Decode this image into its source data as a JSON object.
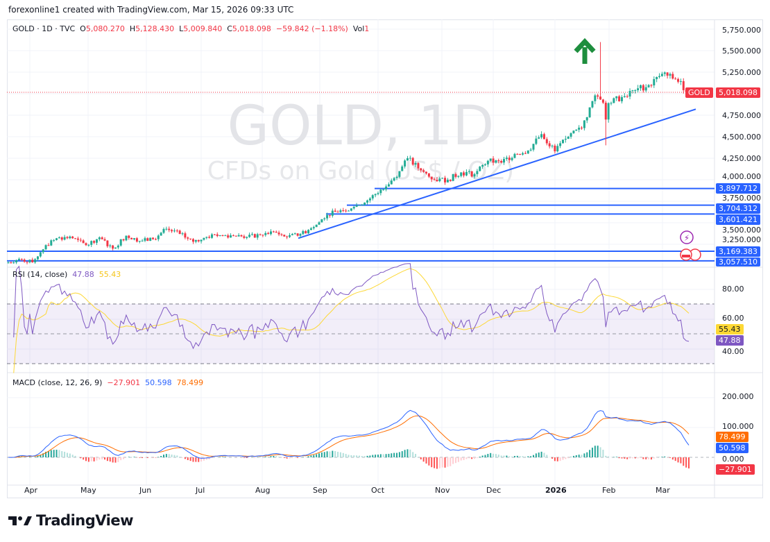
{
  "credit": "forexonline1 created with TradingView.com, Mar 15, 2026 09:33 UTC",
  "legend": {
    "symbol": "GOLD · 1D · TVC",
    "o_label": "O",
    "o": "5,080.270",
    "h_label": "H",
    "h": "5,128.430",
    "l_label": "L",
    "l": "5,009.840",
    "c_label": "C",
    "c": "5,018.098",
    "change": "−59.842 (−1.18%)",
    "vol_label": "Vol",
    "vol": "1"
  },
  "watermark": {
    "title": "GOLD, 1D",
    "subtitle": "CFDs on Gold (US$ / OZ)"
  },
  "price_axis": [
    "5,750.000",
    "5,500.000",
    "5,250.000",
    "4,750.000",
    "4,500.000",
    "4,250.000",
    "4,000.000",
    "3,750.000",
    "3,500.000",
    "3,250.000"
  ],
  "last_price": {
    "symbol": "GOLD",
    "value": "5,018.098"
  },
  "levels": [
    "3,897.712",
    "3,704.312",
    "3,601.421",
    "3,169.383",
    "3,057.510"
  ],
  "rsi": {
    "label": "RSI (14, close)",
    "value": "47.88",
    "ma": "55.43",
    "axis": [
      "80.00",
      "60.00",
      "40.00"
    ]
  },
  "macd": {
    "label": "MACD (close, 12, 26, 9)",
    "hist": "−27.901",
    "macd": "50.598",
    "signal": "78.499",
    "axis": [
      "200.000",
      "100.000",
      "0.000"
    ]
  },
  "time_axis": [
    "Apr",
    "May",
    "Jun",
    "Jul",
    "Aug",
    "Sep",
    "Oct",
    "Nov",
    "Dec",
    "2026",
    "Feb",
    "Mar"
  ],
  "colors": {
    "up": "#22ab94",
    "down": "#f23645",
    "line": "#2962ff",
    "rsi": "#7e57c2",
    "rsi_ma": "#fdd835",
    "signal": "#ff6d00"
  },
  "brand": "TradingView",
  "chart_data": {
    "type": "candlestick",
    "title": "GOLD · 1D · TVC",
    "interval": "1D",
    "weekly_closes": {
      "dates": [
        "2025-03-21",
        "2025-03-28",
        "2025-04-04",
        "2025-04-11",
        "2025-04-18",
        "2025-04-25",
        "2025-05-02",
        "2025-05-09",
        "2025-05-16",
        "2025-05-23",
        "2025-05-30",
        "2025-06-06",
        "2025-06-13",
        "2025-06-20",
        "2025-06-27",
        "2025-07-04",
        "2025-07-11",
        "2025-07-18",
        "2025-07-25",
        "2025-08-01",
        "2025-08-08",
        "2025-08-15",
        "2025-08-22",
        "2025-08-29",
        "2025-09-05",
        "2025-09-12",
        "2025-09-19",
        "2025-09-26",
        "2025-10-03",
        "2025-10-10",
        "2025-10-17",
        "2025-10-24",
        "2025-10-31",
        "2025-11-07",
        "2025-11-14",
        "2025-11-21",
        "2025-11-28",
        "2025-12-05",
        "2025-12-12",
        "2025-12-19",
        "2025-12-26",
        "2026-01-02",
        "2026-01-09",
        "2026-01-16",
        "2026-01-23",
        "2026-01-30",
        "2026-02-06",
        "2026-02-13",
        "2026-02-20",
        "2026-02-27",
        "2026-03-06",
        "2026-03-13"
      ],
      "close": [
        3030,
        3080,
        3040,
        3240,
        3330,
        3320,
        3240,
        3330,
        3200,
        3350,
        3290,
        3310,
        3430,
        3370,
        3280,
        3335,
        3355,
        3350,
        3335,
        3360,
        3395,
        3335,
        3370,
        3450,
        3590,
        3645,
        3685,
        3760,
        3885,
        4020,
        4250,
        4110,
        4000,
        4000,
        4085,
        4065,
        4220,
        4200,
        4300,
        4340,
        4530,
        4330,
        4500,
        4600,
        4980,
        4890,
        4960,
        5040,
        5100,
        5230,
        5170,
        5018
      ]
    },
    "horizontal_levels": [
      3897.712,
      3704.312,
      3601.421,
      3169.383,
      3057.51
    ],
    "trendline": {
      "from": {
        "date": "2025-08-20",
        "price": 3320
      },
      "to": {
        "date": "2026-03-18",
        "price": 4820
      }
    },
    "y_range": [
      3000,
      5800
    ],
    "rsi_range": [
      30,
      90
    ],
    "macd_range": [
      -60,
      240
    ]
  }
}
